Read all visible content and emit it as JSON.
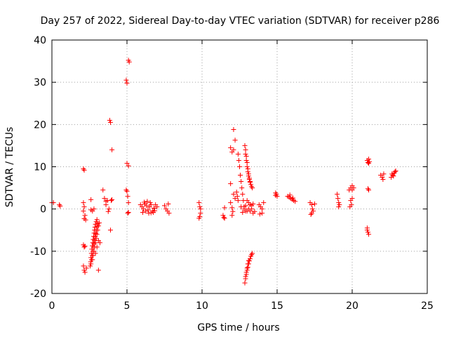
{
  "chart_data": {
    "type": "scatter",
    "title": "Day 257 of 2022, Sidereal Day-to-day VTEC variation (SDTVAR) for receiver p286",
    "xlabel": "GPS time / hours",
    "ylabel": "SDTVAR / TECUs",
    "xlim": [
      0,
      25
    ],
    "ylim": [
      -20,
      40
    ],
    "xticks": [
      0,
      5,
      10,
      15,
      20,
      25
    ],
    "yticks": [
      -20,
      -10,
      0,
      10,
      20,
      30,
      40
    ],
    "xtick_labels": [
      "0",
      "5",
      "10",
      "15",
      "20",
      "25"
    ],
    "ytick_labels": [
      "-20",
      "-10",
      "0",
      "10",
      "20",
      "30",
      "40"
    ],
    "grid": true,
    "marker": "+",
    "color": "#ff0000",
    "series": [
      {
        "name": "SDTVAR",
        "points": [
          [
            0.0,
            1.5
          ],
          [
            0.1,
            1.5
          ],
          [
            0.5,
            1.0
          ],
          [
            0.55,
            0.7
          ],
          [
            2.1,
            9.5
          ],
          [
            2.15,
            9.2
          ],
          [
            2.1,
            1.5
          ],
          [
            2.15,
            0.5
          ],
          [
            2.1,
            -0.5
          ],
          [
            2.2,
            -1.5
          ],
          [
            2.15,
            -2.3
          ],
          [
            2.25,
            -2.6
          ],
          [
            2.1,
            -8.5
          ],
          [
            2.15,
            -9.0
          ],
          [
            2.2,
            -8.8
          ],
          [
            2.1,
            -13.5
          ],
          [
            2.15,
            -14.5
          ],
          [
            2.2,
            -15.0
          ],
          [
            2.3,
            -14.0
          ],
          [
            2.6,
            2.2
          ],
          [
            2.6,
            -0.2
          ],
          [
            2.7,
            -0.5
          ],
          [
            2.8,
            0.0
          ],
          [
            2.55,
            -13.5
          ],
          [
            2.58,
            -12.5
          ],
          [
            2.6,
            -11.5
          ],
          [
            2.63,
            -10.5
          ],
          [
            2.66,
            -9.5
          ],
          [
            2.69,
            -8.7
          ],
          [
            2.72,
            -8.0
          ],
          [
            2.75,
            -7.2
          ],
          [
            2.78,
            -6.5
          ],
          [
            2.81,
            -5.7
          ],
          [
            2.84,
            -5.0
          ],
          [
            2.87,
            -4.3
          ],
          [
            2.9,
            -3.6
          ],
          [
            2.95,
            -3.0
          ],
          [
            3.0,
            -2.5
          ],
          [
            2.6,
            -13.0
          ],
          [
            2.64,
            -12.0
          ],
          [
            2.68,
            -11.0
          ],
          [
            2.72,
            -10.0
          ],
          [
            2.76,
            -9.0
          ],
          [
            2.8,
            -8.2
          ],
          [
            2.84,
            -7.4
          ],
          [
            2.88,
            -6.6
          ],
          [
            2.92,
            -5.8
          ],
          [
            2.96,
            -5.0
          ],
          [
            3.0,
            -4.2
          ],
          [
            3.04,
            -3.5
          ],
          [
            2.7,
            -12.0
          ],
          [
            2.75,
            -11.0
          ],
          [
            2.8,
            -10.0
          ],
          [
            2.85,
            -9.0
          ],
          [
            2.9,
            -8.0
          ],
          [
            2.95,
            -7.0
          ],
          [
            3.0,
            -6.0
          ],
          [
            3.05,
            -5.0
          ],
          [
            3.1,
            -4.0
          ],
          [
            3.15,
            -3.3
          ],
          [
            2.9,
            -10.5
          ],
          [
            3.0,
            -9.0
          ],
          [
            3.1,
            -7.5
          ],
          [
            3.2,
            -8.0
          ],
          [
            3.1,
            -14.5
          ],
          [
            3.4,
            4.5
          ],
          [
            3.5,
            2.5
          ],
          [
            3.6,
            1.8
          ],
          [
            3.7,
            2.0
          ],
          [
            3.6,
            1.0
          ],
          [
            3.8,
            0.0
          ],
          [
            3.75,
            -0.6
          ],
          [
            3.9,
            -5.0
          ],
          [
            3.85,
            21.0
          ],
          [
            3.9,
            20.5
          ],
          [
            4.0,
            14.0
          ],
          [
            3.95,
            2.0
          ],
          [
            4.0,
            2.2
          ],
          [
            4.95,
            30.5
          ],
          [
            5.0,
            29.8
          ],
          [
            5.1,
            35.2
          ],
          [
            5.15,
            34.8
          ],
          [
            5.0,
            10.8
          ],
          [
            5.1,
            10.2
          ],
          [
            4.95,
            4.5
          ],
          [
            5.0,
            4.2
          ],
          [
            5.05,
            3.0
          ],
          [
            5.1,
            1.5
          ],
          [
            5.05,
            -1.0
          ],
          [
            5.1,
            -0.8
          ],
          [
            5.9,
            1.0
          ],
          [
            6.0,
            0.5
          ],
          [
            6.1,
            0.0
          ],
          [
            6.2,
            1.2
          ],
          [
            6.3,
            0.8
          ],
          [
            6.4,
            -0.2
          ],
          [
            6.5,
            0.5
          ],
          [
            6.6,
            1.0
          ],
          [
            6.7,
            -0.5
          ],
          [
            6.8,
            0.2
          ],
          [
            7.0,
            0.5
          ],
          [
            6.05,
            -0.8
          ],
          [
            6.25,
            -0.5
          ],
          [
            6.45,
            -1.0
          ],
          [
            6.55,
            1.5
          ],
          [
            6.75,
            -0.8
          ],
          [
            6.9,
            1.0
          ],
          [
            6.15,
            1.6
          ],
          [
            6.35,
            1.8
          ],
          [
            6.6,
            -0.9
          ],
          [
            6.85,
            -0.4
          ],
          [
            7.5,
            0.8
          ],
          [
            7.6,
            0.0
          ],
          [
            7.7,
            -0.5
          ],
          [
            7.75,
            1.2
          ],
          [
            7.8,
            -1.0
          ],
          [
            9.8,
            1.5
          ],
          [
            9.85,
            0.5
          ],
          [
            9.9,
            0.0
          ],
          [
            9.9,
            -1.0
          ],
          [
            9.85,
            -1.8
          ],
          [
            9.8,
            -2.2
          ],
          [
            11.4,
            -1.5
          ],
          [
            11.45,
            -2.0
          ],
          [
            11.5,
            0.3
          ],
          [
            11.5,
            -2.2
          ],
          [
            11.9,
            6.0
          ],
          [
            11.9,
            14.5
          ],
          [
            12.0,
            13.5
          ],
          [
            12.1,
            14.0
          ],
          [
            12.1,
            18.8
          ],
          [
            12.2,
            16.3
          ],
          [
            11.9,
            1.5
          ],
          [
            12.0,
            0.3
          ],
          [
            12.05,
            -0.6
          ],
          [
            12.1,
            3.5
          ],
          [
            12.2,
            2.5
          ],
          [
            12.0,
            -1.5
          ],
          [
            12.4,
            13.0
          ],
          [
            12.45,
            11.5
          ],
          [
            12.5,
            10.0
          ],
          [
            12.55,
            8.0
          ],
          [
            12.6,
            6.5
          ],
          [
            12.65,
            5.0
          ],
          [
            12.7,
            3.5
          ],
          [
            12.75,
            2.0
          ],
          [
            12.8,
            0.5
          ],
          [
            12.9,
            -0.5
          ],
          [
            12.85,
            15.0
          ],
          [
            12.9,
            13.0
          ],
          [
            12.95,
            11.5
          ],
          [
            13.0,
            10.0
          ],
          [
            13.05,
            8.8
          ],
          [
            13.1,
            7.8
          ],
          [
            13.15,
            7.0
          ],
          [
            13.2,
            6.3
          ],
          [
            13.25,
            5.8
          ],
          [
            13.3,
            5.3
          ],
          [
            13.35,
            5.0
          ],
          [
            12.9,
            14.0
          ],
          [
            12.95,
            12.5
          ],
          [
            13.0,
            11.0
          ],
          [
            13.05,
            9.5
          ],
          [
            13.1,
            8.3
          ],
          [
            13.15,
            7.3
          ],
          [
            13.2,
            6.5
          ],
          [
            12.3,
            4.0
          ],
          [
            12.35,
            3.0
          ],
          [
            12.4,
            2.0
          ],
          [
            12.6,
            0.5
          ],
          [
            12.7,
            -0.8
          ],
          [
            12.8,
            0.0
          ],
          [
            12.9,
            0.8
          ],
          [
            13.0,
            -0.5
          ],
          [
            13.1,
            0.0
          ],
          [
            13.2,
            -0.5
          ],
          [
            13.3,
            0.0
          ],
          [
            13.4,
            -1.0
          ],
          [
            13.5,
            -0.6
          ],
          [
            13.0,
            2.0
          ],
          [
            13.1,
            1.5
          ],
          [
            13.2,
            1.0
          ],
          [
            13.3,
            0.8
          ],
          [
            13.4,
            1.2
          ],
          [
            12.85,
            -17.5
          ],
          [
            12.9,
            -16.5
          ],
          [
            12.95,
            -15.5
          ],
          [
            13.0,
            -14.5
          ],
          [
            13.05,
            -13.8
          ],
          [
            13.1,
            -13.0
          ],
          [
            13.15,
            -12.3
          ],
          [
            13.2,
            -11.8
          ],
          [
            13.25,
            -11.2
          ],
          [
            13.3,
            -10.8
          ],
          [
            13.35,
            -10.5
          ],
          [
            12.9,
            -16.0
          ],
          [
            12.95,
            -15.0
          ],
          [
            13.0,
            -14.0
          ],
          [
            13.05,
            -13.0
          ],
          [
            13.1,
            -12.2
          ],
          [
            13.8,
            1.0
          ],
          [
            13.9,
            0.5
          ],
          [
            14.0,
            0.0
          ],
          [
            14.1,
            1.5
          ],
          [
            14.0,
            -1.0
          ],
          [
            13.85,
            -1.2
          ],
          [
            14.9,
            3.8
          ],
          [
            14.95,
            3.5
          ],
          [
            15.0,
            3.0
          ],
          [
            14.9,
            3.2
          ],
          [
            15.7,
            3.0
          ],
          [
            15.8,
            2.8
          ],
          [
            15.9,
            2.5
          ],
          [
            16.0,
            2.3
          ],
          [
            16.1,
            2.0
          ],
          [
            16.2,
            1.8
          ],
          [
            15.85,
            3.3
          ],
          [
            16.05,
            2.6
          ],
          [
            17.2,
            1.5
          ],
          [
            17.3,
            1.0
          ],
          [
            17.35,
            0.0
          ],
          [
            17.4,
            -0.5
          ],
          [
            17.3,
            -1.0
          ],
          [
            17.5,
            1.2
          ],
          [
            17.25,
            -1.3
          ],
          [
            19.0,
            3.5
          ],
          [
            19.05,
            2.5
          ],
          [
            19.1,
            1.5
          ],
          [
            19.15,
            1.0
          ],
          [
            19.1,
            0.5
          ],
          [
            19.8,
            4.5
          ],
          [
            19.9,
            5.0
          ],
          [
            20.0,
            5.5
          ],
          [
            20.1,
            5.0
          ],
          [
            20.0,
            4.5
          ],
          [
            19.9,
            2.0
          ],
          [
            19.95,
            1.0
          ],
          [
            19.85,
            0.5
          ],
          [
            20.0,
            2.5
          ],
          [
            21.0,
            11.5
          ],
          [
            21.05,
            11.0
          ],
          [
            21.1,
            11.8
          ],
          [
            21.15,
            11.2
          ],
          [
            21.1,
            10.8
          ],
          [
            21.05,
            4.8
          ],
          [
            21.1,
            4.5
          ],
          [
            21.0,
            -5.0
          ],
          [
            21.05,
            -5.5
          ],
          [
            21.1,
            -6.0
          ],
          [
            21.0,
            -4.5
          ],
          [
            21.9,
            8.0
          ],
          [
            22.0,
            7.5
          ],
          [
            22.05,
            7.0
          ],
          [
            22.1,
            8.3
          ],
          [
            22.6,
            7.5
          ],
          [
            22.7,
            8.0
          ],
          [
            22.8,
            8.5
          ],
          [
            22.9,
            9.0
          ],
          [
            22.75,
            7.8
          ],
          [
            22.85,
            8.8
          ],
          [
            22.65,
            8.3
          ]
        ]
      }
    ]
  }
}
